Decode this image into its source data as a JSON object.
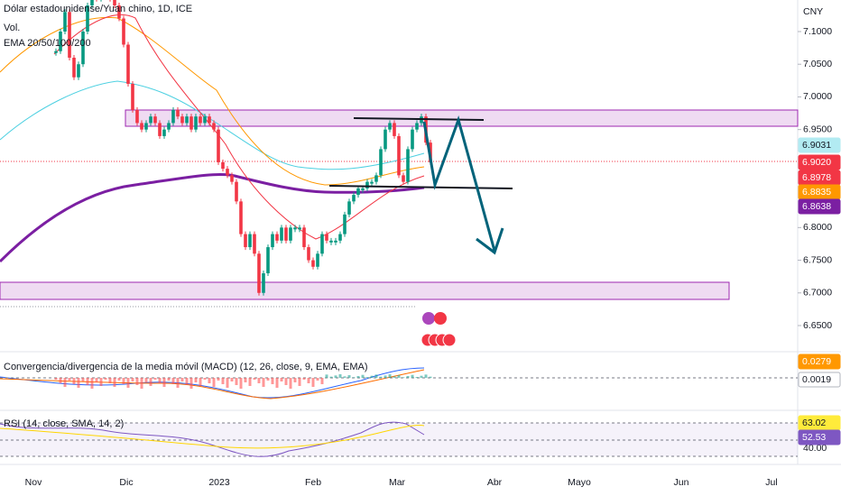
{
  "header": {
    "title": "Dólar estadounidense/Yuan chino, 1D, ICE",
    "volume_label": "Vol.",
    "ema_label": "EMA 20/50/100/200"
  },
  "price_axis": {
    "unit": "CNY",
    "ticks": [
      {
        "value": 7.1,
        "label": "7.1000"
      },
      {
        "value": 7.05,
        "label": "7.0500"
      },
      {
        "value": 7.0,
        "label": "7.0000"
      },
      {
        "value": 6.95,
        "label": "6.9500"
      },
      {
        "value": 6.8,
        "label": "6.8000"
      },
      {
        "value": 6.75,
        "label": "6.7500"
      },
      {
        "value": 6.7,
        "label": "6.7000"
      },
      {
        "value": 6.65,
        "label": "6.6500"
      }
    ],
    "badges": [
      {
        "label": "6.9031",
        "color": "#b2ebf2",
        "text": "#131722"
      },
      {
        "label": "6.9020",
        "color": "#f23645",
        "text": "#ffffff"
      },
      {
        "label": "6.8978",
        "color": "#f23645",
        "text": "#ffffff"
      },
      {
        "label": "6.8835",
        "color": "#ff9800",
        "text": "#ffffff"
      },
      {
        "label": "6.8638",
        "color": "#7b1fa2",
        "text": "#ffffff"
      }
    ]
  },
  "price_series": {
    "up_color": "#089981",
    "down_color": "#f23645",
    "closes": [
      7.07,
      7.1,
      7.13,
      7.06,
      7.03,
      7.05,
      7.1,
      7.14,
      7.16,
      7.15,
      7.16,
      7.17,
      7.15,
      7.14,
      7.12,
      7.08,
      7.02,
      6.98,
      6.96,
      6.95,
      6.96,
      6.97,
      6.96,
      6.94,
      6.95,
      6.96,
      6.98,
      6.97,
      6.96,
      6.97,
      6.95,
      6.97,
      6.96,
      6.97,
      6.96,
      6.95,
      6.9,
      6.89,
      6.88,
      6.87,
      6.84,
      6.79,
      6.77,
      6.79,
      6.76,
      6.7,
      6.73,
      6.77,
      6.79,
      6.78,
      6.8,
      6.78,
      6.8,
      6.8,
      6.8,
      6.77,
      6.75,
      6.74,
      6.76,
      6.79,
      6.78,
      6.78,
      6.78,
      6.79,
      6.82,
      6.84,
      6.85,
      6.86,
      6.86,
      6.87,
      6.87,
      6.88,
      6.92,
      6.95,
      6.96,
      6.94,
      6.88,
      6.87,
      6.92,
      6.95,
      6.96,
      6.97,
      6.93,
      6.9
    ]
  },
  "macd": {
    "title": "Convergencia/divergencia de la media móvil (MACD) (12, 26, close, 9, EMA, EMA)",
    "badges": [
      {
        "label": "0.0279",
        "color": "#ff9800",
        "text": "#ffffff"
      },
      {
        "label": "0.0019",
        "color": "#ffffff",
        "text": "#131722"
      }
    ]
  },
  "rsi": {
    "title": "RSI (14, close, SMA, 14, 2)",
    "badges": [
      {
        "label": "63.02",
        "color": "#ffeb3b",
        "text": "#131722"
      },
      {
        "label": "52.53",
        "color": "#7e57c2",
        "text": "#ffffff"
      }
    ],
    "axis_label": "40.00"
  },
  "time_axis": [
    "Nov",
    "Dic",
    "2023",
    "Feb",
    "Mar",
    "Abr",
    "Mayo",
    "Jun",
    "Jul"
  ]
}
